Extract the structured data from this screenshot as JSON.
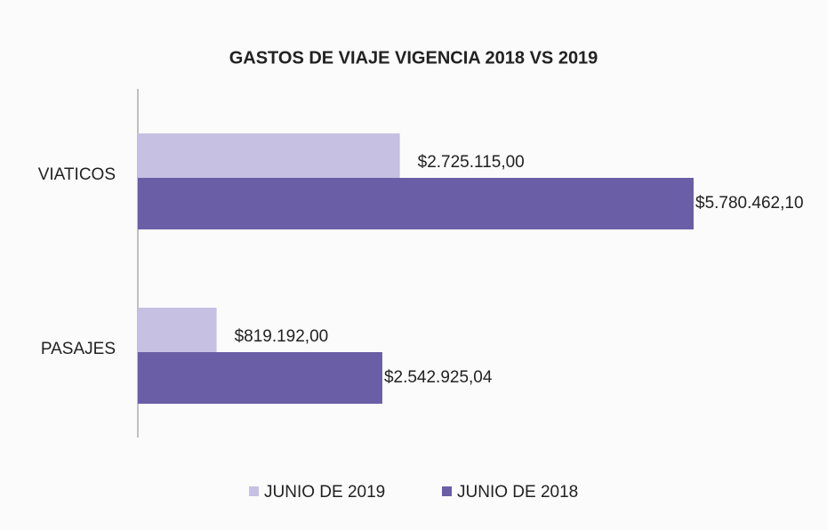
{
  "chart_data": {
    "type": "barh",
    "title": "GASTOS DE VIAJE  VIGENCIA  2018 VS 2019",
    "categories": [
      "VIATICOS",
      "PASAJES"
    ],
    "series": [
      {
        "name": "JUNIO DE 2019",
        "color": "#c6c1e2",
        "values": [
          2725115.0,
          819192.0
        ],
        "value_labels": [
          "$2.725.115,00",
          "$819.192,00"
        ]
      },
      {
        "name": "JUNIO DE 2018",
        "color": "#6a5ea6",
        "values": [
          5780462.1,
          2542925.04
        ],
        "value_labels": [
          "$5.780.462,10",
          "$2.542.925,04"
        ]
      }
    ],
    "legend": "bottom"
  }
}
